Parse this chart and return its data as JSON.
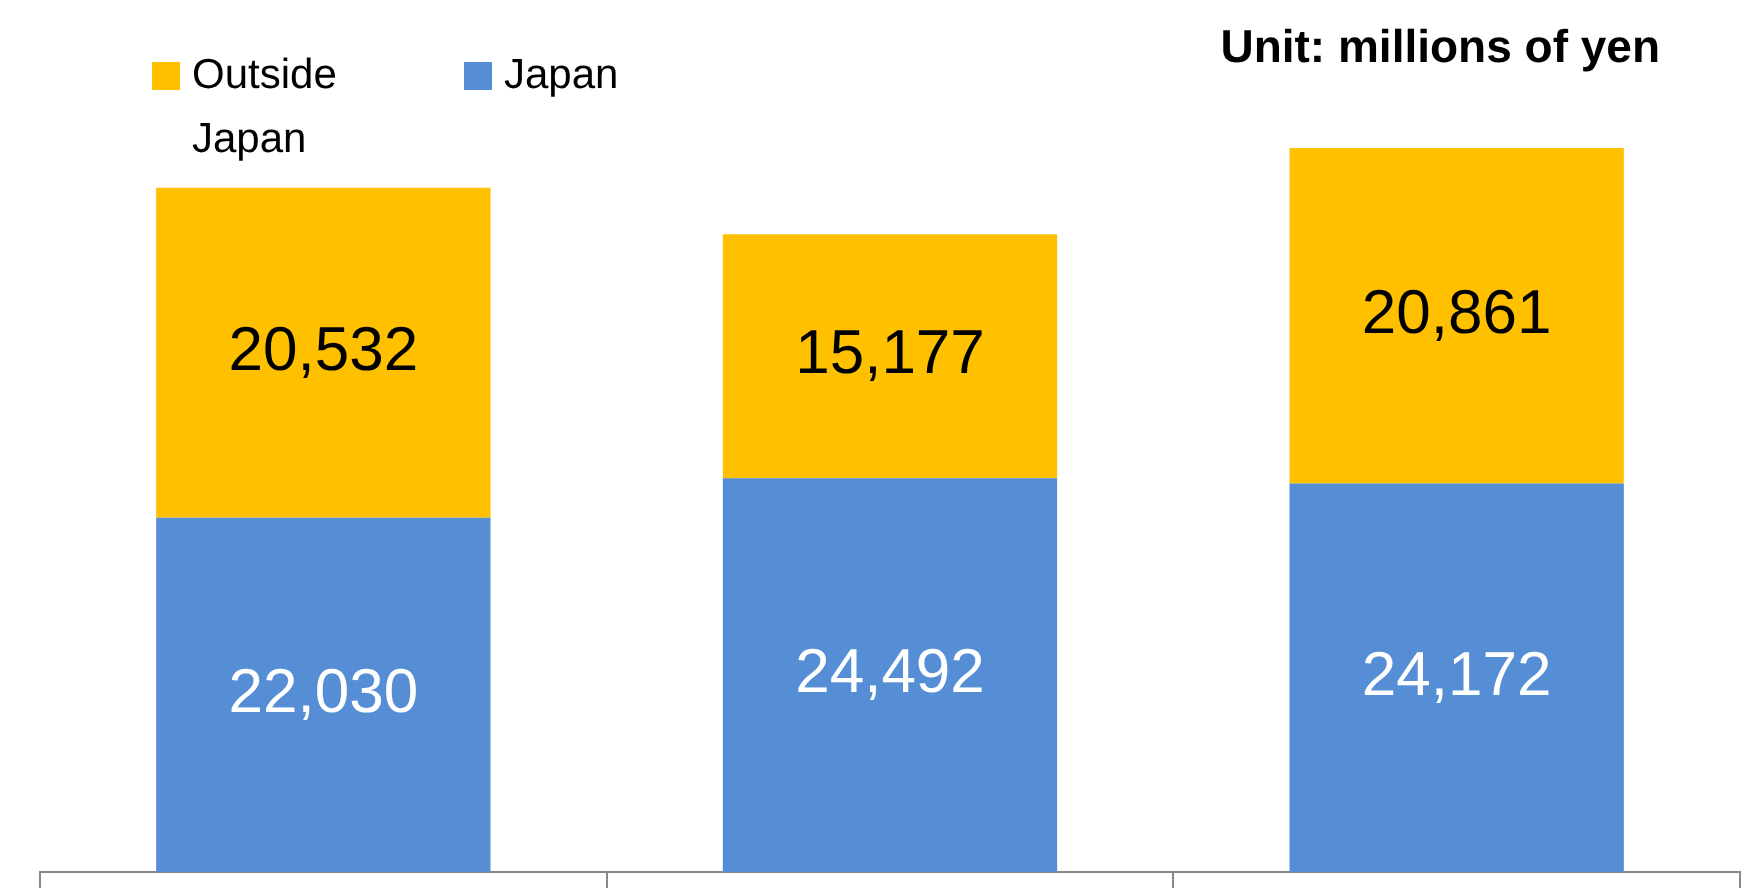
{
  "chart_data": {
    "type": "bar",
    "stacked": true,
    "categories": [
      null,
      null,
      null
    ],
    "series": [
      {
        "name": "Japan",
        "color": "#558ed5",
        "values": [
          22030,
          24492,
          24172
        ],
        "value_labels": [
          "22,030",
          "24,492",
          "24,172"
        ]
      },
      {
        "name": "Outside Japan",
        "color": "#ffc000",
        "values": [
          20532,
          15177,
          20861
        ],
        "value_labels": [
          "20,532",
          "15,177",
          "20,861"
        ]
      }
    ],
    "legend": "top left",
    "tick_labels": false,
    "annotations": [
      "Unit: millions of yen"
    ]
  }
}
